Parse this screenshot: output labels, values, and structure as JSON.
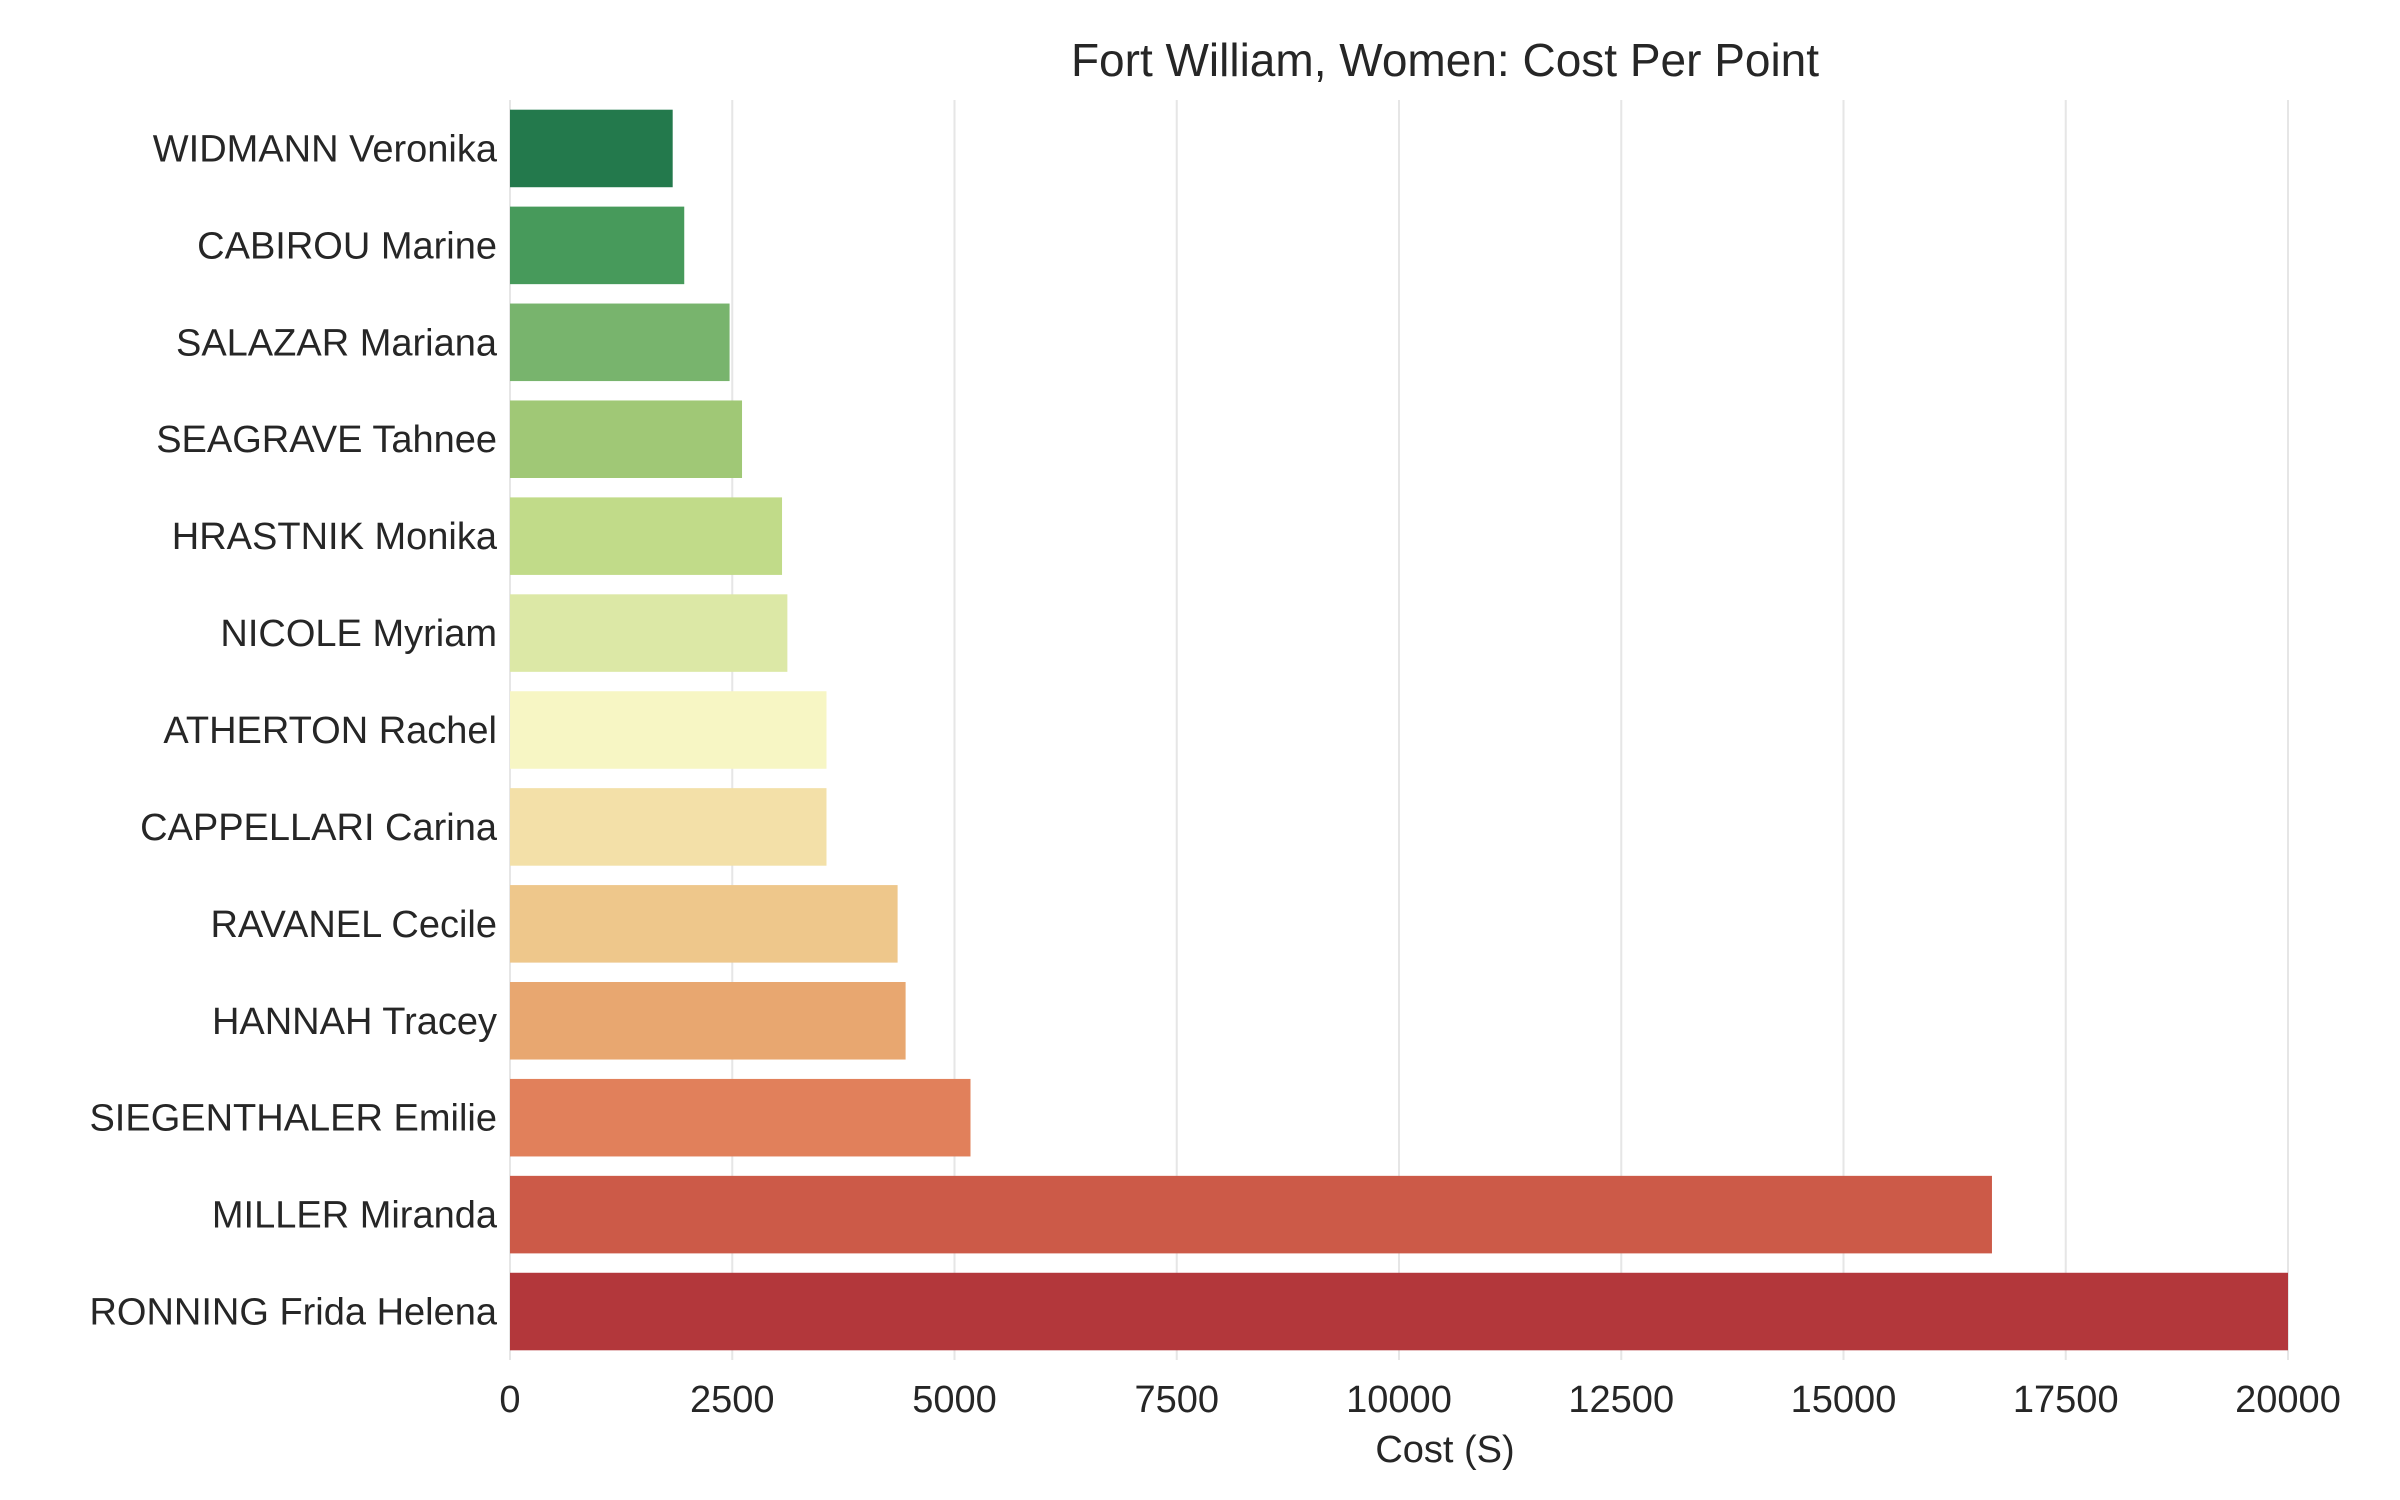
{
  "chart_data": {
    "type": "bar",
    "orientation": "horizontal",
    "title": "Fort William, Women: Cost Per Point",
    "xlabel": "Cost (S)",
    "ylabel": "",
    "xlim": [
      0,
      20000
    ],
    "grid": "vertical",
    "xticks": [
      "0",
      "2500",
      "5000",
      "7500",
      "10000",
      "12500",
      "15000",
      "17500",
      "20000"
    ],
    "xtick_values": [
      0,
      2500,
      5000,
      7500,
      10000,
      12500,
      15000,
      17500,
      20000
    ],
    "categories": [
      "WIDMANN Veronika",
      "CABIROU Marine",
      "SALAZAR Mariana",
      "SEAGRAVE Tahnee",
      "HRASTNIK Monika",
      "NICOLE Myriam",
      "ATHERTON Rachel",
      "CAPPELLARI Carina",
      "RAVANEL Cecile",
      "HANNAH Tracey",
      "SIEGENTHALER Emilie",
      "MILLER Miranda",
      "RONNING Frida Helena"
    ],
    "values": [
      1830,
      1960,
      2470,
      2610,
      3060,
      3120,
      3560,
      3560,
      4360,
      4450,
      5180,
      16670,
      20000
    ],
    "colors": [
      "#23794c",
      "#479a5b",
      "#78b46d",
      "#a0c876",
      "#c1db89",
      "#dce8a6",
      "#f7f6c4",
      "#f3e0a8",
      "#eec78b",
      "#e8a770",
      "#e1805b",
      "#cc5a48",
      "#b3373b"
    ]
  }
}
